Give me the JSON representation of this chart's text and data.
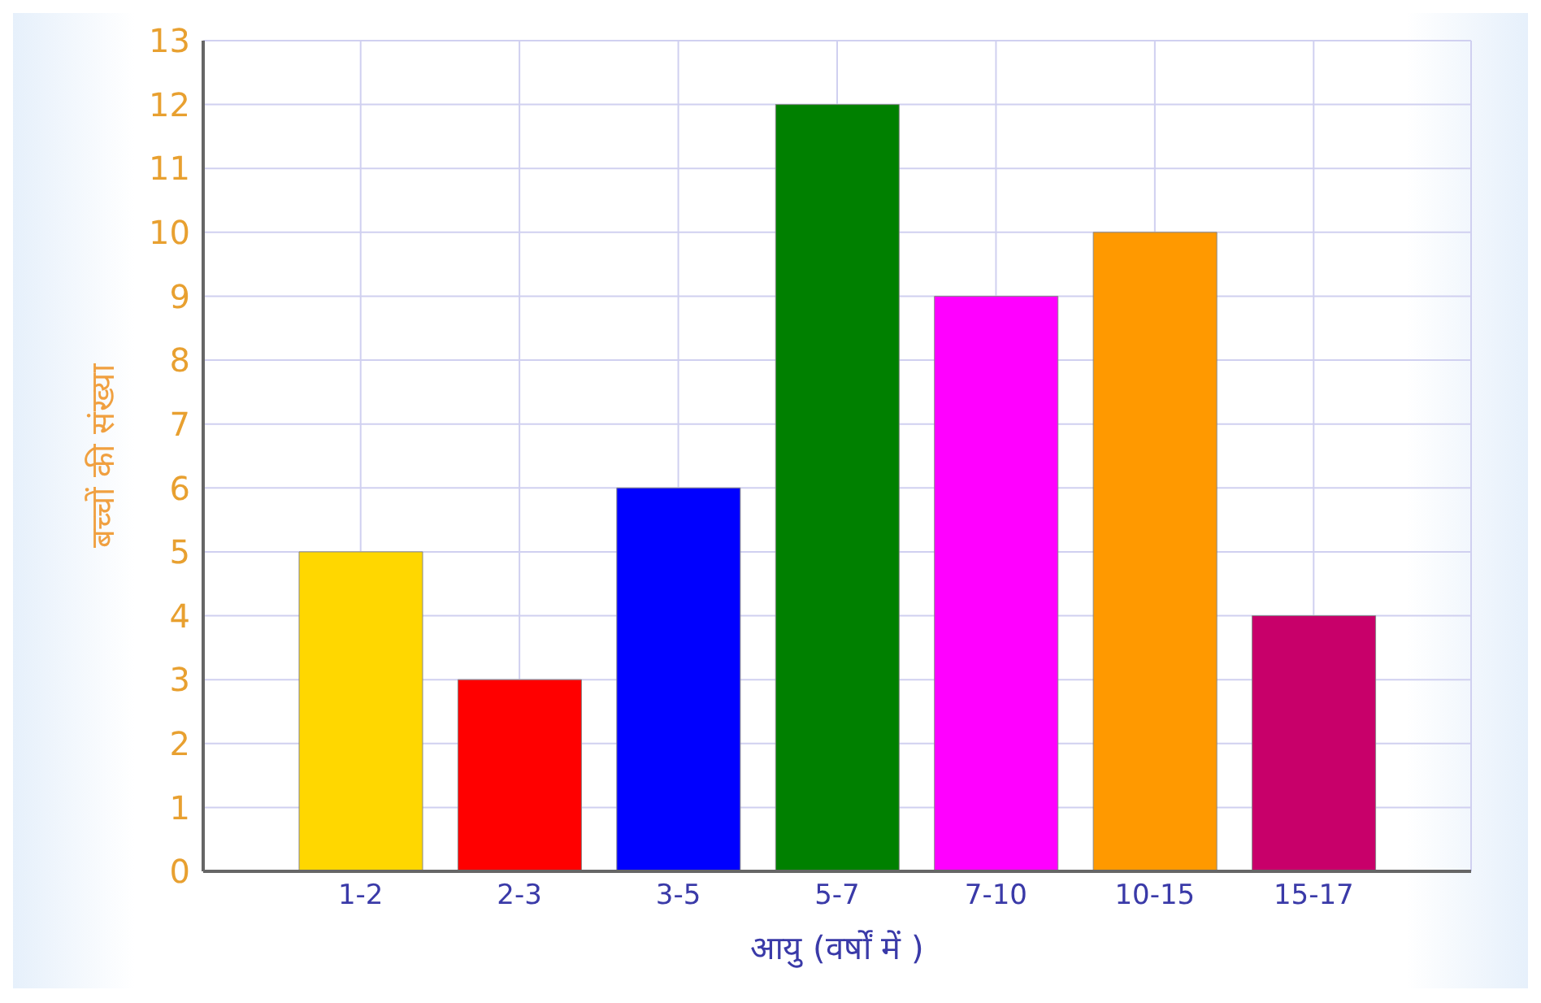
{
  "chart_data": {
    "type": "bar",
    "xlabel": "आयु (वर्षों में )",
    "ylabel": "बच्चों की संख्या",
    "categories": [
      "1-2",
      "2-3",
      "3-5",
      "5-7",
      "7-10",
      "10-15",
      "15-17"
    ],
    "values": [
      5,
      3,
      6,
      12,
      9,
      10,
      4
    ],
    "colors": [
      "#ffd700",
      "#ff0000",
      "#0000ff",
      "#008000",
      "#ff00ff",
      "#ff9900",
      "#c8006a"
    ],
    "ylim": [
      0,
      13
    ],
    "yticks": [
      0,
      1,
      2,
      3,
      4,
      5,
      6,
      7,
      8,
      9,
      10,
      11,
      12,
      13
    ],
    "grid": true,
    "legend": false
  }
}
